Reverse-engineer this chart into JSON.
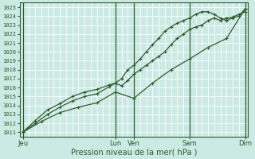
{
  "bg_color": "#cceae4",
  "grid_color": "#ffffff",
  "line_color": "#2d5a2d",
  "marker_color": "#2d5a2d",
  "axis_label_color": "#2d5a2d",
  "tick_label_color": "#2d5a2d",
  "xlabel": "Pression niveau de la mer( hPa )",
  "ylim": [
    1010.5,
    1025.5
  ],
  "yticks": [
    1011,
    1012,
    1013,
    1014,
    1015,
    1016,
    1017,
    1018,
    1019,
    1020,
    1021,
    1022,
    1023,
    1024,
    1025
  ],
  "day_labels": [
    "Jeu",
    "Lun",
    "Ven",
    "Sam",
    "Dim"
  ],
  "day_tick_x": [
    0,
    15,
    18,
    27,
    36
  ],
  "num_points": 37,
  "vline_x": [
    0,
    15,
    18,
    27,
    36
  ],
  "line1_x": [
    0,
    3,
    6,
    9,
    12,
    15,
    18,
    21,
    24,
    27,
    30,
    33,
    36
  ],
  "line1_y": [
    1011.0,
    1012.2,
    1013.2,
    1013.8,
    1014.3,
    1015.5,
    1014.8,
    1016.5,
    1018.0,
    1019.2,
    1020.5,
    1021.5,
    1024.8
  ],
  "line2_x": [
    0,
    2,
    4,
    6,
    8,
    10,
    12,
    14,
    15,
    16,
    17,
    18,
    19,
    20,
    21,
    22,
    23,
    24,
    25,
    26,
    27,
    28,
    29,
    30,
    31,
    32,
    33,
    34,
    35,
    36
  ],
  "line2_y": [
    1011.0,
    1012.0,
    1013.0,
    1013.8,
    1014.5,
    1015.0,
    1015.3,
    1016.1,
    1016.5,
    1016.2,
    1016.8,
    1017.5,
    1018.0,
    1018.5,
    1019.0,
    1019.5,
    1020.0,
    1020.8,
    1021.5,
    1022.0,
    1022.5,
    1022.8,
    1023.0,
    1023.5,
    1023.8,
    1023.5,
    1023.8,
    1023.9,
    1024.2,
    1024.5
  ],
  "line3_x": [
    0,
    2,
    4,
    6,
    8,
    10,
    12,
    14,
    15,
    16,
    17,
    18,
    19,
    20,
    21,
    22,
    23,
    24,
    25,
    26,
    27,
    28,
    29,
    30,
    31,
    32,
    33,
    34,
    35,
    36
  ],
  "line3_y": [
    1011.0,
    1012.3,
    1013.5,
    1014.2,
    1015.0,
    1015.5,
    1015.8,
    1016.3,
    1016.5,
    1017.0,
    1018.0,
    1018.5,
    1019.2,
    1020.0,
    1020.8,
    1021.5,
    1022.3,
    1022.8,
    1023.2,
    1023.5,
    1023.8,
    1024.2,
    1024.5,
    1024.5,
    1024.2,
    1023.8,
    1023.5,
    1023.8,
    1024.0,
    1024.8
  ]
}
